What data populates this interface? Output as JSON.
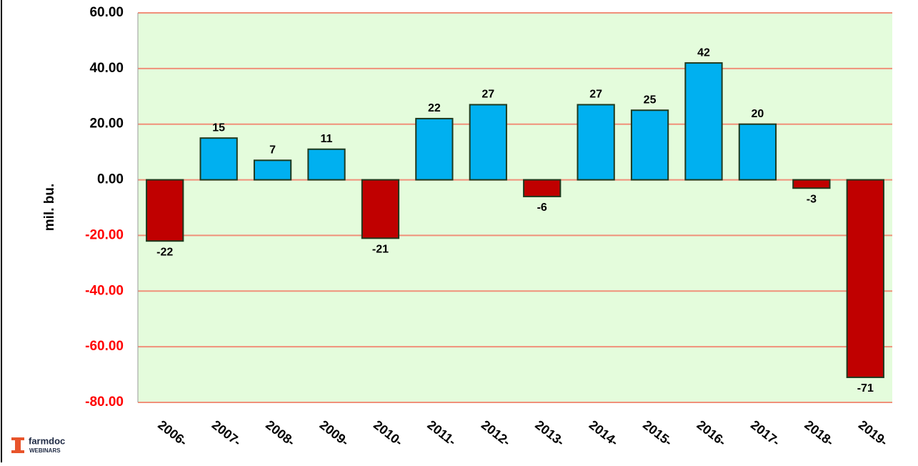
{
  "chart_data": {
    "type": "bar",
    "y_label": "mil. bu.",
    "categories": [
      "2006-",
      "2007-",
      "2008-",
      "2009-",
      "2010-",
      "2011-",
      "2012-",
      "2013-",
      "2014-",
      "2015-",
      "2016-",
      "2017-",
      "2018-",
      "2019-"
    ],
    "values": [
      -22,
      15,
      7,
      11,
      -21,
      22,
      27,
      -6,
      27,
      25,
      42,
      20,
      -3,
      -71
    ],
    "positive_color": "#00b0f0",
    "negative_color": "#c00000",
    "negative_tick_color": "#ff0000",
    "ylim": [
      -80,
      60
    ],
    "yticks": [
      {
        "value": -80,
        "label": "-80.00"
      },
      {
        "value": -60,
        "label": "-60.00"
      },
      {
        "value": -40,
        "label": "-40.00"
      },
      {
        "value": -20,
        "label": "-20.00"
      },
      {
        "value": 0,
        "label": "0.00"
      },
      {
        "value": 20,
        "label": "20.00"
      },
      {
        "value": 40,
        "label": "40.00"
      },
      {
        "value": 60,
        "label": "60.00"
      }
    ],
    "grid": true
  },
  "logo": {
    "name": "farmdoc",
    "subtitle": "WEBINARS"
  }
}
